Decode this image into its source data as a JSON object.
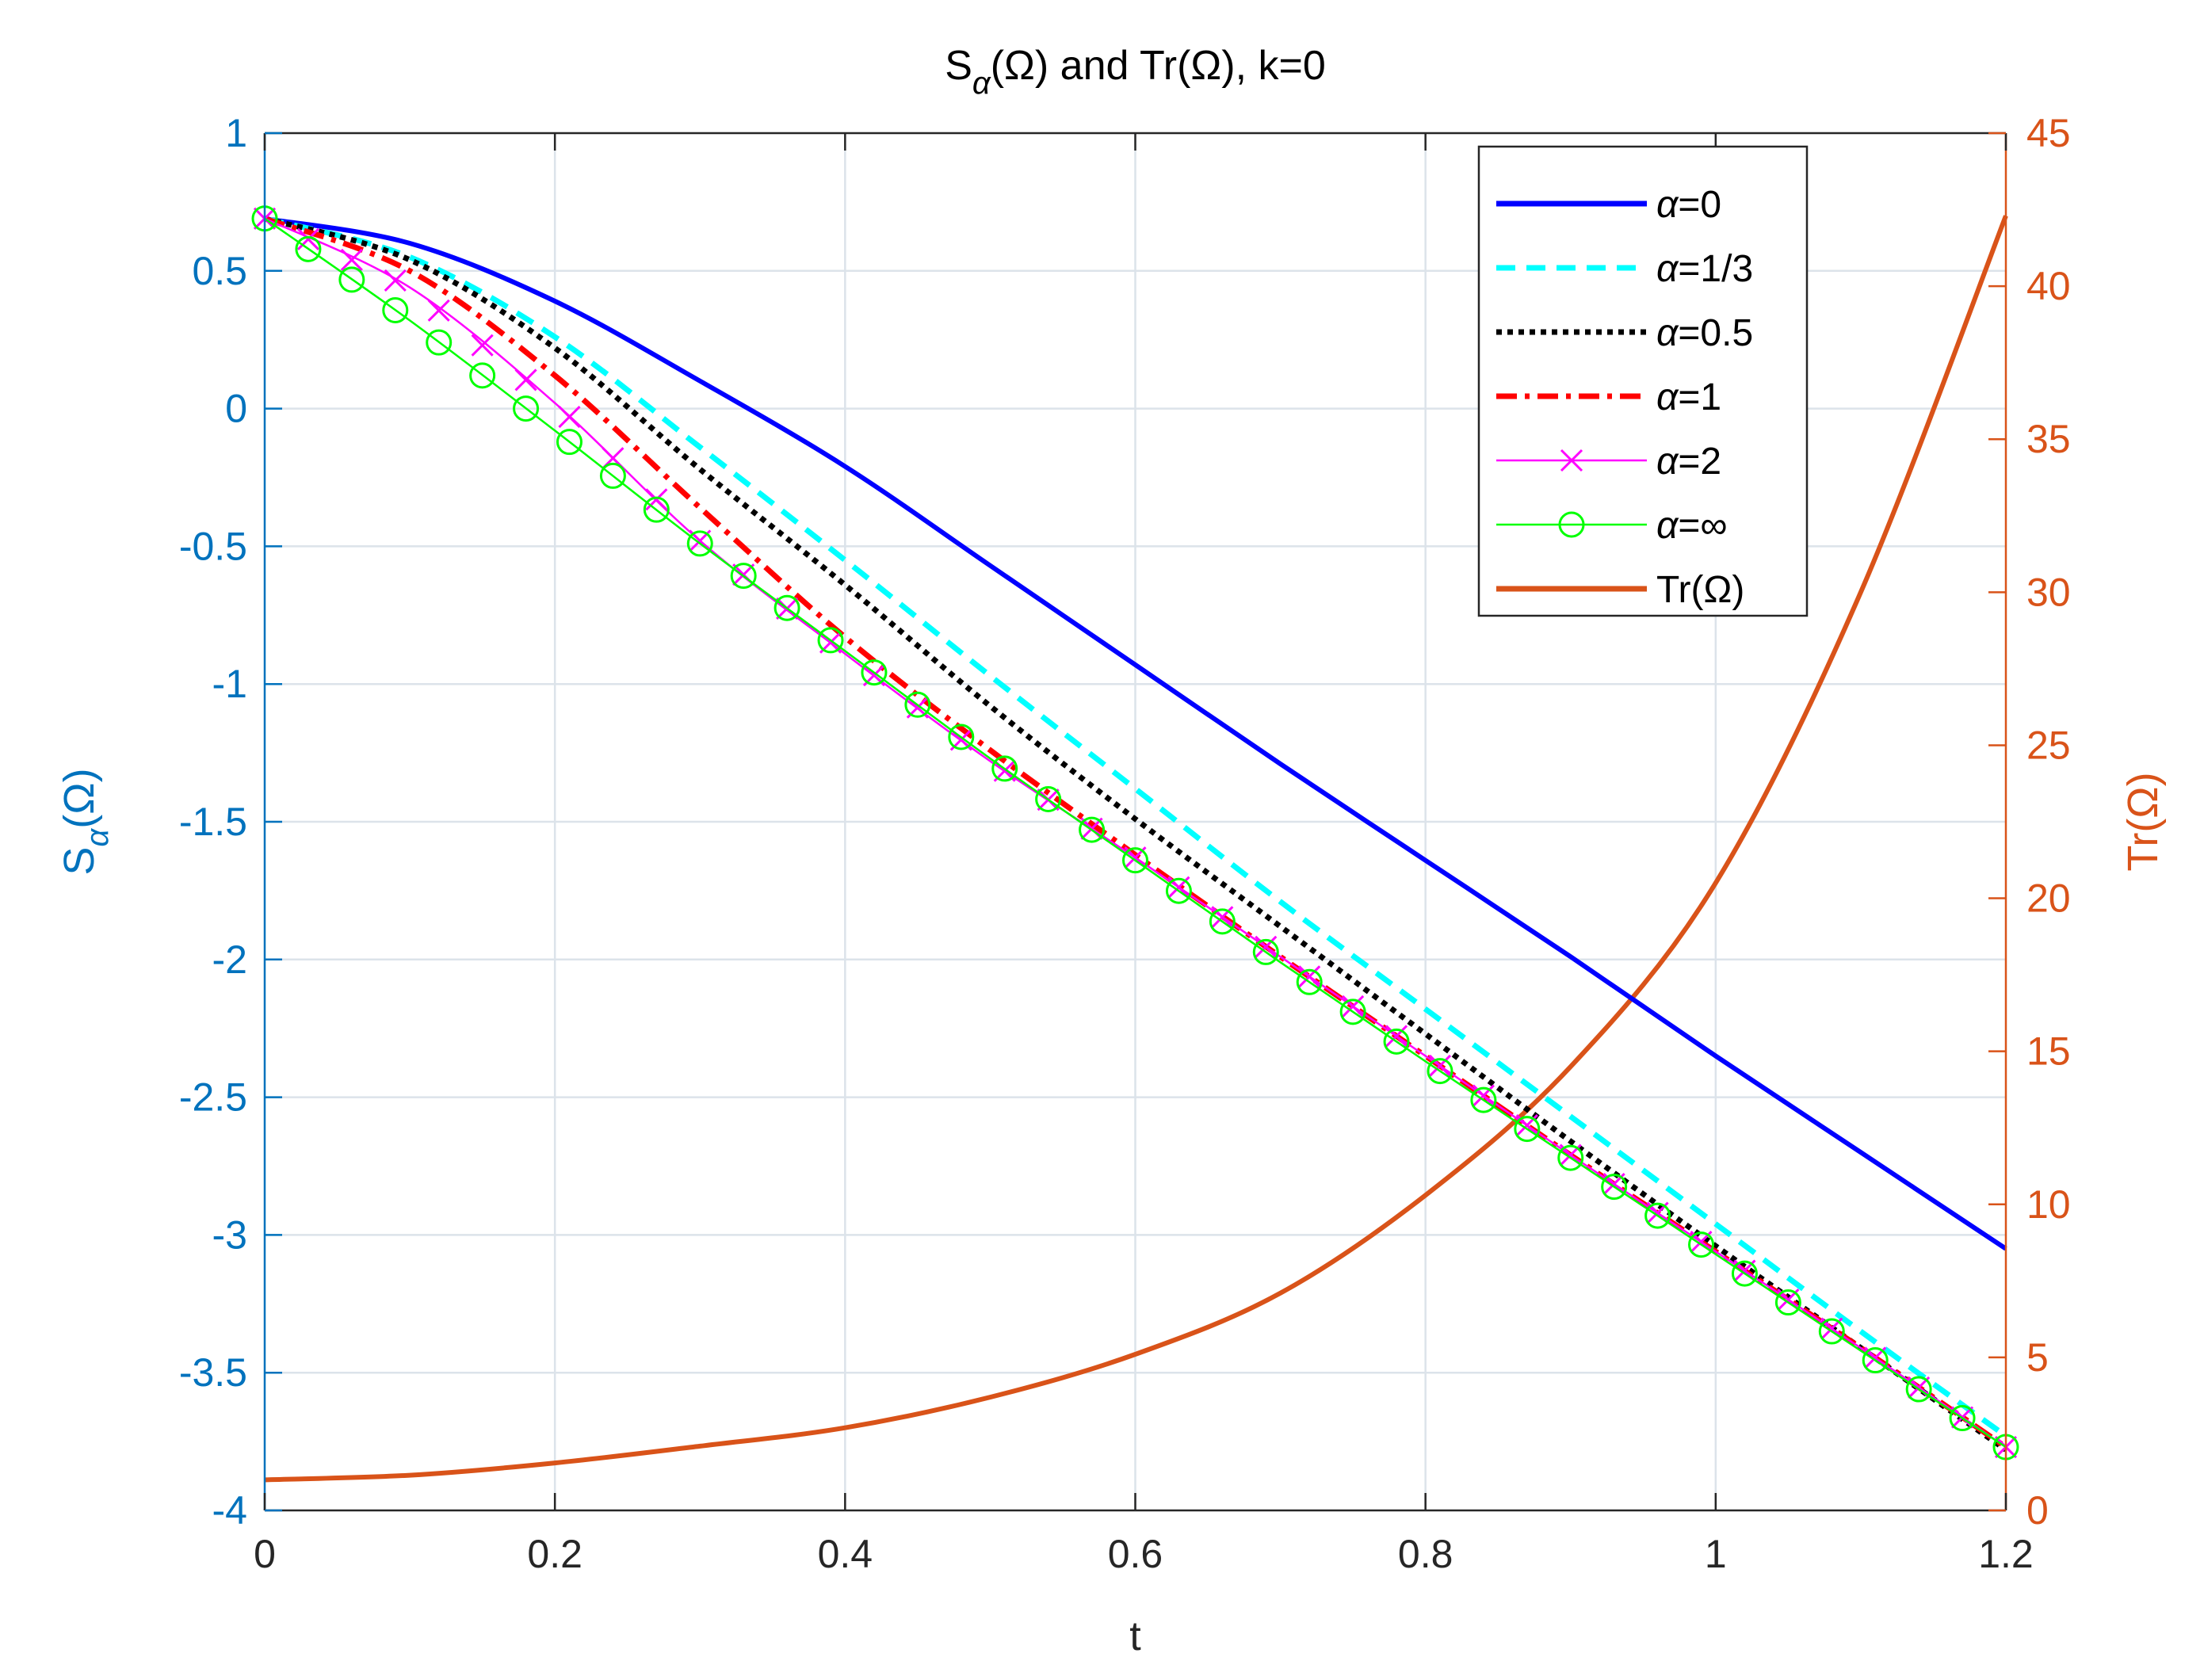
{
  "chart_data": {
    "type": "line",
    "title_main": "S",
    "title_sub": "α",
    "title_rest": "(Ω) and Tr(Ω), k=0",
    "xlabel": "t",
    "ylabel_left_main": "S",
    "ylabel_left_sub": "α",
    "ylabel_left_rest": "(Ω)",
    "ylabel_right": "Tr(Ω)",
    "xlim": [
      0,
      1.2
    ],
    "ylim_left": [
      -4,
      1
    ],
    "ylim_right": [
      0,
      45
    ],
    "x_ticks": [
      0,
      0.2,
      0.4,
      0.6,
      0.8,
      1,
      1.2
    ],
    "x_tick_labels": [
      "0",
      "0.2",
      "0.4",
      "0.6",
      "0.8",
      "1",
      "1.2"
    ],
    "y_left_ticks": [
      -4,
      -3.5,
      -3,
      -2.5,
      -2,
      -1.5,
      -1,
      -0.5,
      0,
      0.5,
      1
    ],
    "y_left_tick_labels": [
      "-4",
      "-3.5",
      "-3",
      "-2.5",
      "-2",
      "-1.5",
      "-1",
      "-0.5",
      "0",
      "0.5",
      "1"
    ],
    "y_right_ticks": [
      0,
      5,
      10,
      15,
      20,
      25,
      30,
      35,
      40,
      45
    ],
    "y_right_tick_labels": [
      "0",
      "5",
      "10",
      "15",
      "20",
      "25",
      "30",
      "35",
      "40",
      "45"
    ],
    "grid": true,
    "legend_location": "top-right",
    "colors": {
      "left_axis": "#0072BD",
      "right_axis": "#D95319",
      "grid": "#DCE3EA",
      "axis_dark": "#262626"
    },
    "series": [
      {
        "name": "α=0",
        "legend_prefix": "α",
        "legend_suffix": "=0",
        "axis": "left",
        "color": "#0000FF",
        "style": "solid",
        "marker": "none",
        "x": [
          0,
          0.1,
          0.2,
          0.3,
          0.4,
          0.5,
          0.6,
          0.7,
          0.8,
          0.9,
          1.0,
          1.1,
          1.2
        ],
        "y": [
          0.69,
          0.6,
          0.39,
          0.1,
          -0.21,
          -0.57,
          -0.93,
          -1.29,
          -1.64,
          -1.99,
          -2.35,
          -2.7,
          -3.05
        ]
      },
      {
        "name": "α=1/3",
        "legend_prefix": "α",
        "legend_suffix": "=1/3",
        "axis": "left",
        "color": "#00FFFF",
        "style": "dashed",
        "marker": "none",
        "x": [
          0,
          0.1,
          0.2,
          0.3,
          0.4,
          0.5,
          0.6,
          0.7,
          0.8,
          0.9,
          1.0,
          1.1,
          1.2
        ],
        "y": [
          0.69,
          0.55,
          0.26,
          -0.14,
          -0.55,
          -0.97,
          -1.38,
          -1.79,
          -2.18,
          -2.57,
          -2.96,
          -3.35,
          -3.73
        ]
      },
      {
        "name": "α=0.5",
        "legend_prefix": "α",
        "legend_suffix": "=0.5",
        "axis": "left",
        "color": "#000000",
        "style": "dotted",
        "marker": "none",
        "x": [
          0,
          0.1,
          0.2,
          0.3,
          0.4,
          0.5,
          0.6,
          0.7,
          0.8,
          0.9,
          1.0,
          1.1,
          1.2
        ],
        "y": [
          0.69,
          0.54,
          0.22,
          -0.22,
          -0.64,
          -1.08,
          -1.49,
          -1.88,
          -2.27,
          -2.66,
          -3.04,
          -3.41,
          -3.78
        ]
      },
      {
        "name": "α=1",
        "legend_prefix": "α",
        "legend_suffix": "=1",
        "axis": "left",
        "color": "#FF0000",
        "style": "dashdot",
        "marker": "none",
        "x": [
          0,
          0.1,
          0.2,
          0.3,
          0.4,
          0.5,
          0.6,
          0.7,
          0.8,
          0.9,
          1.0,
          1.1,
          1.2
        ],
        "y": [
          0.69,
          0.5,
          0.12,
          -0.36,
          -0.83,
          -1.24,
          -1.62,
          -1.99,
          -2.35,
          -2.71,
          -3.06,
          -3.41,
          -3.77
        ]
      },
      {
        "name": "α=2",
        "legend_prefix": "α",
        "legend_suffix": "=2",
        "axis": "left",
        "color": "#FF00FF",
        "style": "solid",
        "marker": "x",
        "x": [
          0,
          0.1,
          0.2,
          0.3,
          0.4,
          0.5,
          0.6,
          0.7,
          0.8,
          0.9,
          1.0,
          1.1,
          1.2
        ],
        "y": [
          0.69,
          0.44,
          0.02,
          -0.48,
          -0.89,
          -1.28,
          -1.63,
          -1.99,
          -2.35,
          -2.71,
          -3.06,
          -3.41,
          -3.77
        ]
      },
      {
        "name": "α=∞",
        "legend_prefix": "α",
        "legend_suffix": "=∞",
        "axis": "left",
        "color": "#00FF00",
        "style": "solid",
        "marker": "o",
        "x": [
          0,
          0.1,
          0.2,
          0.3,
          0.4,
          0.5,
          0.6,
          0.7,
          0.8,
          0.9,
          1.0,
          1.1,
          1.2
        ],
        "y": [
          0.69,
          0.32,
          -0.08,
          -0.49,
          -0.88,
          -1.27,
          -1.64,
          -2.01,
          -2.37,
          -2.72,
          -3.07,
          -3.42,
          -3.77
        ]
      },
      {
        "name": "Tr(Ω)",
        "legend_prefix": "",
        "legend_suffix": "Tr(Ω)",
        "axis": "right",
        "color": "#D95319",
        "style": "solid",
        "marker": "none",
        "x": [
          0,
          0.1,
          0.2,
          0.3,
          0.4,
          0.5,
          0.6,
          0.7,
          0.8,
          0.9,
          1.0,
          1.1,
          1.2
        ],
        "y": [
          1.0,
          1.15,
          1.55,
          2.1,
          2.7,
          3.7,
          5.1,
          7.1,
          10.3,
          14.5,
          20.5,
          30.0,
          42.3
        ]
      }
    ]
  }
}
